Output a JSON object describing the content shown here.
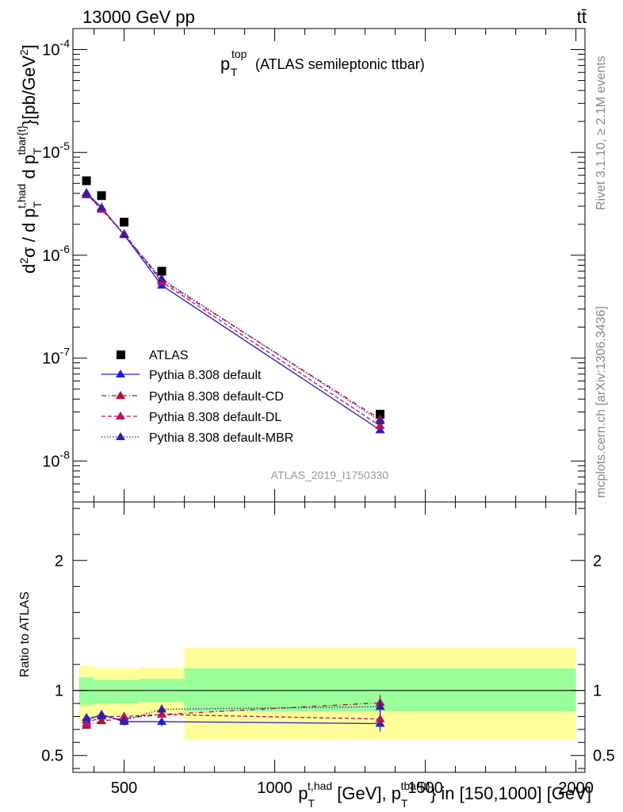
{
  "header": {
    "energy": "13000 GeV pp",
    "process": "tt̄"
  },
  "side_text": {
    "rivet": "Rivet 3.1.10, ≥ 2.1M events",
    "mcplots": "mcplots.cern.ch [arXiv:1306.3436]"
  },
  "chart_data": [
    {
      "type": "scatter",
      "title": "(ATLAS semileptonic ttbar)",
      "title_symbol": "p",
      "title_sub": "T",
      "title_sup": "top",
      "watermark": "ATLAS_2019_I1750330",
      "ylabel": "d²σ / d p_T^{t,had} d p_T^{tbar{t}} [pb/GeV²]",
      "yscale": "log",
      "xlim": [
        330,
        2030
      ],
      "ylim": [
        4e-09,
        0.00016
      ],
      "ytick_labels": [
        "10^{-8}",
        "10^{-7}",
        "10^{-6}",
        "10^{-5}",
        "10^{-4}"
      ],
      "legend_position": "middle-left",
      "x": [
        375,
        425,
        500,
        625,
        1350
      ],
      "series": [
        {
          "name": "ATLAS",
          "color": "#000000",
          "marker": "square",
          "line": "none",
          "values": [
            5.3e-06,
            3.8e-06,
            2.1e-06,
            7e-07,
            2.85e-08
          ]
        },
        {
          "name": "Pythia 8.308 default",
          "color": "#1f1fd6",
          "marker": "triangle",
          "line": "solid",
          "values": [
            4.05e-06,
            2.9e-06,
            1.58e-06,
            5.1e-07,
            2e-08
          ]
        },
        {
          "name": "Pythia 8.308 default-CD",
          "color": "#b21035",
          "marker": "triangle",
          "line": "dashdot",
          "values": [
            3.85e-06,
            2.85e-06,
            1.62e-06,
            5.7e-07,
            2.55e-08
          ]
        },
        {
          "name": "Pythia 8.308 default-DL",
          "color": "#b5165f",
          "marker": "triangle",
          "line": "dashed",
          "values": [
            3.95e-06,
            2.78e-06,
            1.6e-06,
            5.5e-07,
            2.2e-08
          ]
        },
        {
          "name": "Pythia 8.308 default-MBR",
          "color": "#3a1aa8",
          "marker": "triangle",
          "line": "dotted",
          "values": [
            4e-06,
            2.92e-06,
            1.58e-06,
            5.9e-07,
            2.45e-08
          ]
        }
      ]
    },
    {
      "type": "line",
      "ylabel": "Ratio to ATLAS",
      "xlabel": "p_T^{t,had} [GeV], p_T^{tbar{t}} in [150,1000] [GeV]",
      "xlim": [
        330,
        2030
      ],
      "ylim": [
        0.37,
        2.45
      ],
      "xtick_labels": [
        "500",
        "1000",
        "1500",
        "2000"
      ],
      "ytick_labels": [
        "0.5",
        "1",
        "2"
      ],
      "bin_edges": [
        350,
        400,
        450,
        550,
        700,
        2000
      ],
      "band_yellow": [
        [
          0.76,
          1.19
        ],
        [
          0.8,
          1.17
        ],
        [
          0.8,
          1.17
        ],
        [
          0.81,
          1.18
        ],
        [
          0.62,
          1.33
        ]
      ],
      "band_green": [
        [
          0.89,
          1.1
        ],
        [
          0.9,
          1.08
        ],
        [
          0.9,
          1.08
        ],
        [
          0.91,
          1.09
        ],
        [
          0.84,
          1.17
        ]
      ],
      "x": [
        375,
        425,
        500,
        625,
        1350
      ],
      "series": [
        {
          "name": "Pythia 8.308 default",
          "color": "#1f1fd6",
          "line": "solid",
          "values": [
            0.77,
            0.815,
            0.76,
            0.76,
            0.745
          ],
          "errors": [
            0.03,
            0.03,
            0.03,
            0.035,
            0.06
          ]
        },
        {
          "name": "Pythia 8.308 default-CD",
          "color": "#b21035",
          "line": "dashdot",
          "values": [
            0.73,
            0.765,
            0.785,
            0.815,
            0.905
          ],
          "errors": [
            0.025,
            0.025,
            0.03,
            0.035,
            0.06
          ]
        },
        {
          "name": "Pythia 8.308 default-DL",
          "color": "#b5165f",
          "line": "dashed",
          "values": [
            0.745,
            0.8,
            0.8,
            0.815,
            0.78
          ],
          "errors": [
            0.025,
            0.025,
            0.03,
            0.035,
            0.06
          ]
        },
        {
          "name": "Pythia 8.308 default-MBR",
          "color": "#3a1aa8",
          "line": "dotted",
          "values": [
            0.79,
            0.805,
            0.77,
            0.855,
            0.875
          ],
          "errors": [
            0.025,
            0.025,
            0.03,
            0.035,
            0.06
          ]
        }
      ]
    }
  ]
}
